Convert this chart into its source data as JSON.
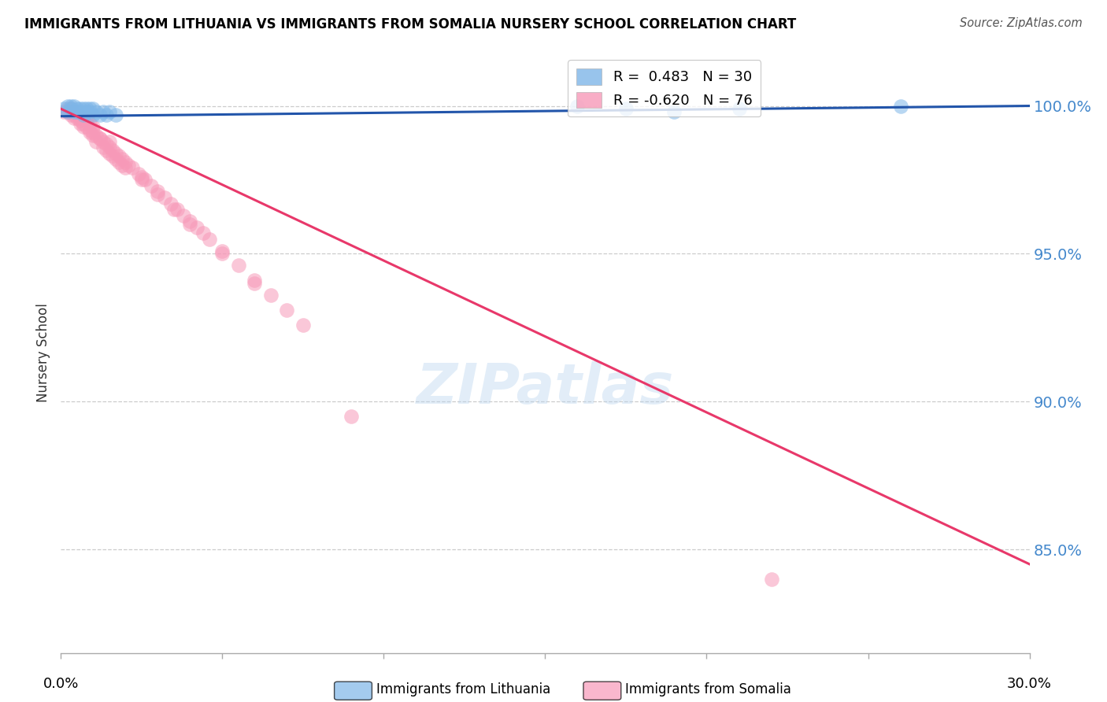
{
  "title": "IMMIGRANTS FROM LITHUANIA VS IMMIGRANTS FROM SOMALIA NURSERY SCHOOL CORRELATION CHART",
  "source": "Source: ZipAtlas.com",
  "ylabel": "Nursery School",
  "ytick_labels": [
    "100.0%",
    "95.0%",
    "90.0%",
    "85.0%"
  ],
  "ytick_values": [
    1.0,
    0.95,
    0.9,
    0.85
  ],
  "xlim": [
    0.0,
    0.3
  ],
  "ylim": [
    0.815,
    1.018
  ],
  "color_lithuania": "#7EB6E8",
  "color_somalia": "#F799B8",
  "color_line_lithuania": "#2255AA",
  "color_line_somalia": "#E8386A",
  "watermark": "ZIPatlas",
  "lithuania_x": [
    0.001,
    0.002,
    0.002,
    0.003,
    0.003,
    0.004,
    0.004,
    0.005,
    0.005,
    0.006,
    0.006,
    0.007,
    0.007,
    0.008,
    0.008,
    0.009,
    0.009,
    0.01,
    0.01,
    0.011,
    0.012,
    0.013,
    0.014,
    0.015,
    0.017,
    0.16,
    0.21,
    0.26,
    0.175,
    0.19
  ],
  "lithuania_y": [
    0.999,
    0.998,
    1.0,
    0.999,
    1.0,
    0.998,
    1.0,
    0.998,
    0.999,
    0.998,
    0.999,
    0.997,
    0.999,
    0.998,
    0.999,
    0.998,
    0.999,
    0.997,
    0.999,
    0.998,
    0.997,
    0.998,
    0.997,
    0.998,
    0.997,
    1.0,
    0.999,
    1.0,
    0.999,
    0.998
  ],
  "somalia_x": [
    0.001,
    0.002,
    0.002,
    0.003,
    0.003,
    0.004,
    0.005,
    0.005,
    0.006,
    0.006,
    0.007,
    0.007,
    0.008,
    0.008,
    0.009,
    0.009,
    0.01,
    0.01,
    0.011,
    0.012,
    0.013,
    0.014,
    0.015,
    0.015,
    0.016,
    0.017,
    0.018,
    0.019,
    0.02,
    0.021,
    0.022,
    0.024,
    0.025,
    0.026,
    0.028,
    0.03,
    0.032,
    0.034,
    0.036,
    0.038,
    0.04,
    0.042,
    0.044,
    0.046,
    0.05,
    0.055,
    0.06,
    0.065,
    0.07,
    0.075,
    0.003,
    0.004,
    0.005,
    0.006,
    0.007,
    0.008,
    0.009,
    0.01,
    0.011,
    0.012,
    0.013,
    0.014,
    0.015,
    0.016,
    0.017,
    0.018,
    0.019,
    0.02,
    0.025,
    0.03,
    0.035,
    0.04,
    0.05,
    0.06,
    0.22,
    0.09
  ],
  "somalia_y": [
    0.998,
    0.998,
    0.999,
    0.997,
    0.998,
    0.996,
    0.996,
    0.997,
    0.995,
    0.996,
    0.994,
    0.996,
    0.993,
    0.995,
    0.992,
    0.994,
    0.991,
    0.993,
    0.99,
    0.989,
    0.988,
    0.987,
    0.986,
    0.988,
    0.985,
    0.984,
    0.983,
    0.982,
    0.981,
    0.98,
    0.979,
    0.977,
    0.976,
    0.975,
    0.973,
    0.971,
    0.969,
    0.967,
    0.965,
    0.963,
    0.961,
    0.959,
    0.957,
    0.955,
    0.951,
    0.946,
    0.941,
    0.936,
    0.931,
    0.926,
    0.999,
    0.997,
    0.998,
    0.994,
    0.993,
    0.996,
    0.991,
    0.99,
    0.988,
    0.989,
    0.986,
    0.985,
    0.984,
    0.983,
    0.982,
    0.981,
    0.98,
    0.979,
    0.975,
    0.97,
    0.965,
    0.96,
    0.95,
    0.94,
    0.84,
    0.895
  ]
}
